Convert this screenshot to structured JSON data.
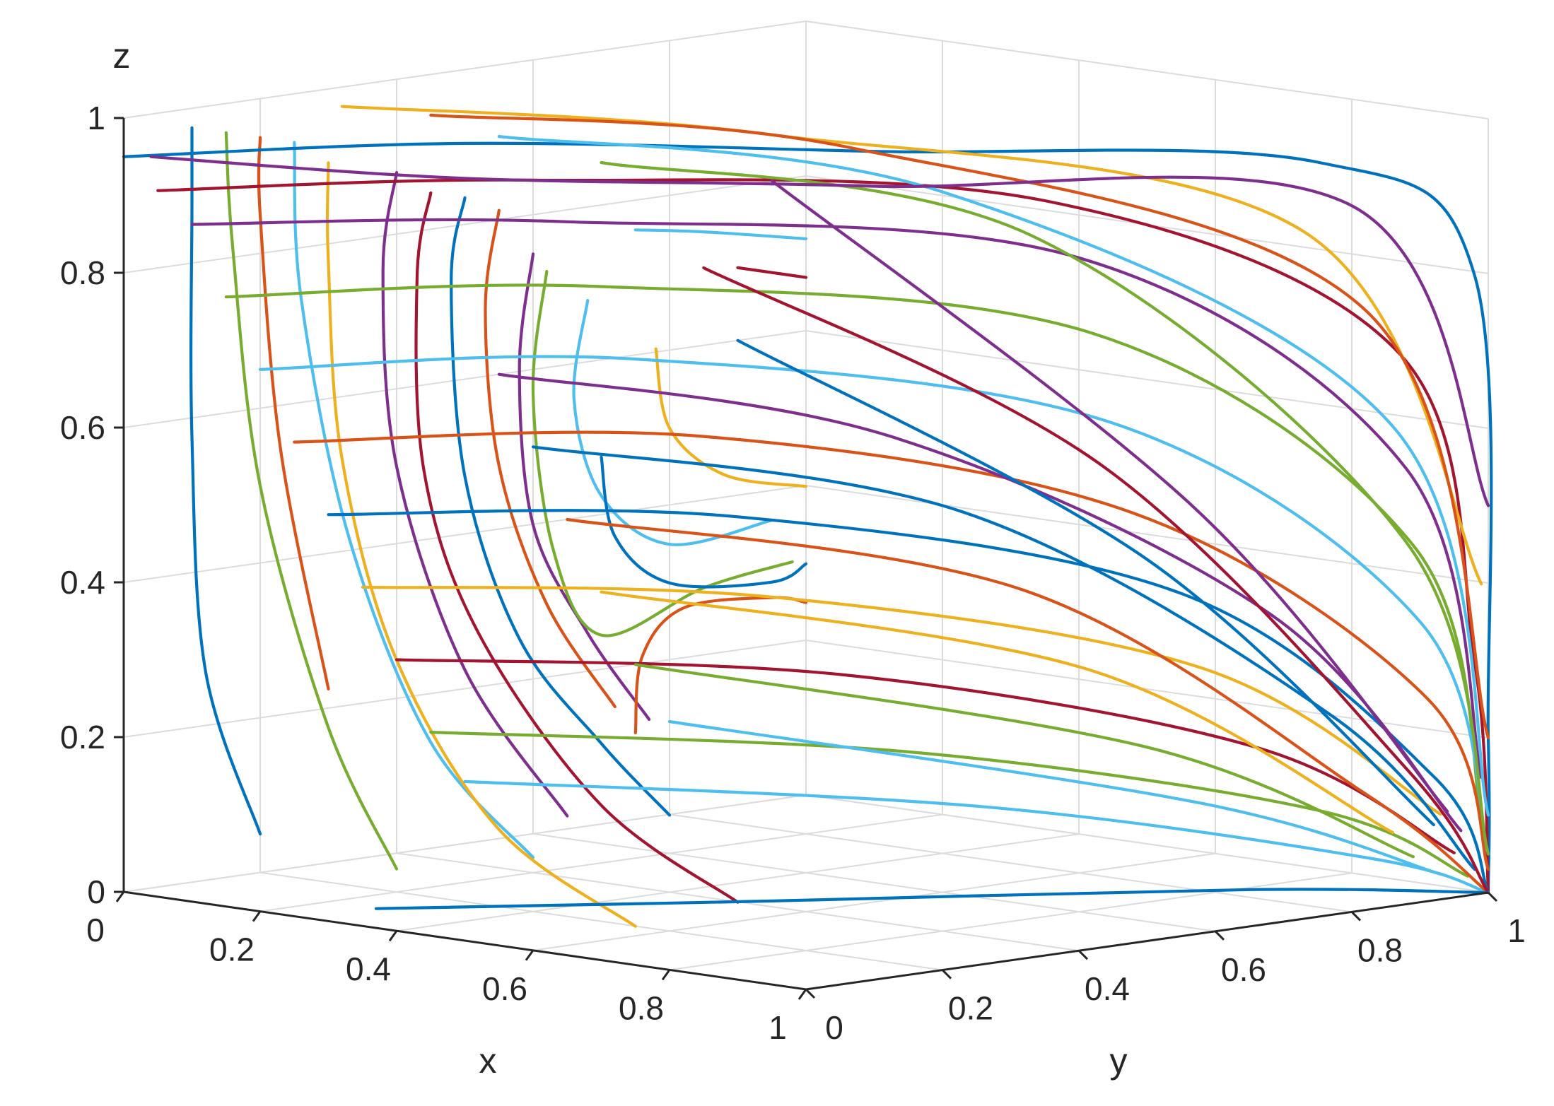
{
  "chart_data": {
    "type": "line",
    "chart_kind": "3d-trajectory-plot",
    "grid": true,
    "xlabel": "x",
    "ylabel": "y",
    "zlabel": "z",
    "xlim": [
      0,
      1
    ],
    "ylim": [
      0,
      1
    ],
    "zlim": [
      0,
      1
    ],
    "xticks": [
      {
        "v": 0,
        "label": "0"
      },
      {
        "v": 0.2,
        "label": "0.2"
      },
      {
        "v": 0.4,
        "label": "0.4"
      },
      {
        "v": 0.6,
        "label": "0.6"
      },
      {
        "v": 0.8,
        "label": "0.8"
      },
      {
        "v": 1,
        "label": "1"
      }
    ],
    "yticks": [
      {
        "v": 0,
        "label": "0"
      },
      {
        "v": 0.2,
        "label": "0.2"
      },
      {
        "v": 0.4,
        "label": "0.4"
      },
      {
        "v": 0.6,
        "label": "0.6"
      },
      {
        "v": 0.8,
        "label": "0.8"
      },
      {
        "v": 1,
        "label": "1"
      }
    ],
    "zticks": [
      {
        "v": 0,
        "label": "0"
      },
      {
        "v": 0.2,
        "label": "0.2"
      },
      {
        "v": 0.4,
        "label": "0.4"
      },
      {
        "v": 0.6,
        "label": "0.6"
      },
      {
        "v": 0.8,
        "label": "0.8"
      },
      {
        "v": 1,
        "label": "1"
      }
    ],
    "colors": [
      "#0072BD",
      "#D95319",
      "#EDB120",
      "#7E2F8E",
      "#77AC30",
      "#4DBEEE",
      "#A2142F"
    ],
    "series": [
      {
        "color": "#0072BD",
        "points": [
          [
            0.1,
            0,
            1
          ],
          [
            0.1,
            0,
            0.9
          ],
          [
            0.1,
            0,
            0.6
          ],
          [
            0.12,
            0,
            0.3
          ],
          [
            0.2,
            0,
            0.1
          ]
        ]
      },
      {
        "color": "#77AC30",
        "points": [
          [
            0.15,
            0,
            1
          ],
          [
            0.16,
            0,
            0.85
          ],
          [
            0.2,
            0,
            0.55
          ],
          [
            0.3,
            0,
            0.25
          ],
          [
            0.4,
            0,
            0.08
          ]
        ]
      },
      {
        "color": "#D95319",
        "points": [
          [
            0.2,
            0,
            1
          ],
          [
            0.2,
            0,
            0.9
          ],
          [
            0.23,
            0,
            0.6
          ],
          [
            0.3,
            0,
            0.3
          ]
        ]
      },
      {
        "color": "#4DBEEE",
        "points": [
          [
            0.25,
            0,
            1
          ],
          [
            0.26,
            0,
            0.8
          ],
          [
            0.33,
            0,
            0.5
          ],
          [
            0.45,
            0,
            0.25
          ],
          [
            0.6,
            0,
            0.12
          ]
        ]
      },
      {
        "color": "#EDB120",
        "points": [
          [
            0.3,
            0,
            0.98
          ],
          [
            0.3,
            0,
            0.85
          ],
          [
            0.32,
            0,
            0.6
          ],
          [
            0.4,
            0,
            0.35
          ],
          [
            0.55,
            0,
            0.15
          ],
          [
            0.75,
            0,
            0.05
          ]
        ]
      },
      {
        "color": "#7E2F8E",
        "points": [
          [
            0.4,
            0,
            0.98
          ],
          [
            0.38,
            0,
            0.85
          ],
          [
            0.4,
            0,
            0.6
          ],
          [
            0.5,
            0,
            0.35
          ],
          [
            0.65,
            0,
            0.18
          ]
        ]
      },
      {
        "color": "#A2142F",
        "points": [
          [
            0.45,
            0,
            0.96
          ],
          [
            0.43,
            0,
            0.85
          ],
          [
            0.44,
            0,
            0.6
          ],
          [
            0.52,
            0,
            0.4
          ],
          [
            0.7,
            0,
            0.2
          ],
          [
            0.9,
            0,
            0.1
          ]
        ]
      },
      {
        "color": "#0072BD",
        "points": [
          [
            0.5,
            0,
            0.96
          ],
          [
            0.48,
            0,
            0.85
          ],
          [
            0.5,
            0,
            0.6
          ],
          [
            0.58,
            0,
            0.4
          ],
          [
            0.7,
            0,
            0.28
          ],
          [
            0.8,
            0,
            0.2
          ]
        ]
      },
      {
        "color": "#D95319",
        "points": [
          [
            0.55,
            0,
            0.95
          ],
          [
            0.53,
            0,
            0.82
          ],
          [
            0.55,
            0,
            0.62
          ],
          [
            0.62,
            0,
            0.45
          ],
          [
            0.72,
            0,
            0.33
          ]
        ]
      },
      {
        "color": "#7E2F8E",
        "points": [
          [
            0.6,
            0,
            0.9
          ],
          [
            0.58,
            0,
            0.75
          ],
          [
            0.6,
            0,
            0.55
          ],
          [
            0.68,
            0,
            0.42
          ],
          [
            0.77,
            0,
            0.32
          ]
        ]
      },
      {
        "color": "#77AC30",
        "points": [
          [
            0.62,
            0,
            0.88
          ],
          [
            0.6,
            0,
            0.72
          ],
          [
            0.63,
            0,
            0.52
          ],
          [
            0.7,
            0,
            0.42
          ],
          [
            0.85,
            0,
            0.5
          ],
          [
            0.98,
            0,
            0.55
          ]
        ]
      },
      {
        "color": "#4DBEEE",
        "points": [
          [
            0.68,
            0,
            0.85
          ],
          [
            0.66,
            0,
            0.72
          ],
          [
            0.7,
            0,
            0.6
          ],
          [
            0.8,
            0,
            0.55
          ],
          [
            0.95,
            0,
            0.6
          ]
        ]
      },
      {
        "color": "#0072BD",
        "points": [
          [
            0.7,
            0,
            0.65
          ],
          [
            0.72,
            0,
            0.55
          ],
          [
            0.8,
            0,
            0.5
          ],
          [
            0.95,
            0,
            0.52
          ],
          [
            1,
            0,
            0.55
          ]
        ]
      },
      {
        "color": "#EDB120",
        "points": [
          [
            0.78,
            0,
            0.8
          ],
          [
            0.8,
            0,
            0.7
          ],
          [
            0.88,
            0,
            0.65
          ],
          [
            1,
            0,
            0.65
          ]
        ]
      },
      {
        "color": "#D95319",
        "points": [
          [
            0.75,
            0,
            0.3
          ],
          [
            0.76,
            0,
            0.4
          ],
          [
            0.82,
            0,
            0.47
          ],
          [
            0.95,
            0,
            0.5
          ],
          [
            1,
            0,
            0.5
          ]
        ]
      },
      {
        "color": "#A2142F",
        "points": [
          [
            0.9,
            0,
            0.92
          ],
          [
            0.95,
            0,
            0.92
          ],
          [
            1,
            0,
            0.92
          ]
        ]
      },
      {
        "color": "#4DBEEE",
        "points": [
          [
            0.75,
            0,
            0.95
          ],
          [
            0.85,
            0,
            0.96
          ],
          [
            1,
            0,
            0.97
          ]
        ]
      },
      {
        "color": "#0072BD",
        "points": [
          [
            0,
            0,
            0.95
          ],
          [
            0.3,
            0.2,
            0.98
          ],
          [
            0.6,
            0.5,
            0.97
          ],
          [
            0.9,
            0.85,
            0.95
          ],
          [
            1,
            0.98,
            0.8
          ],
          [
            1,
            1,
            0.2
          ],
          [
            1,
            1,
            0
          ]
        ]
      },
      {
        "color": "#A2142F",
        "points": [
          [
            0,
            0.05,
            0.9
          ],
          [
            0.3,
            0.3,
            0.92
          ],
          [
            0.7,
            0.65,
            0.9
          ],
          [
            0.95,
            0.92,
            0.7
          ],
          [
            1,
            0.98,
            0.3
          ],
          [
            1,
            1,
            0
          ]
        ]
      },
      {
        "color": "#7E2F8E",
        "points": [
          [
            0,
            0.1,
            0.85
          ],
          [
            0.3,
            0.35,
            0.86
          ],
          [
            0.7,
            0.7,
            0.82
          ],
          [
            0.95,
            0.93,
            0.55
          ],
          [
            1,
            0.99,
            0.15
          ]
        ]
      },
      {
        "color": "#77AC30",
        "points": [
          [
            0,
            0.15,
            0.75
          ],
          [
            0.3,
            0.4,
            0.77
          ],
          [
            0.7,
            0.72,
            0.72
          ],
          [
            0.95,
            0.94,
            0.45
          ],
          [
            1,
            0.99,
            0.1
          ]
        ]
      },
      {
        "color": "#4DBEEE",
        "points": [
          [
            0,
            0.2,
            0.65
          ],
          [
            0.3,
            0.45,
            0.67
          ],
          [
            0.7,
            0.75,
            0.6
          ],
          [
            0.95,
            0.95,
            0.35
          ],
          [
            1,
            1,
            0.05
          ]
        ]
      },
      {
        "color": "#D95319",
        "points": [
          [
            0,
            0.25,
            0.55
          ],
          [
            0.35,
            0.5,
            0.57
          ],
          [
            0.7,
            0.78,
            0.48
          ],
          [
            0.95,
            0.96,
            0.25
          ],
          [
            1,
            1,
            0.03
          ]
        ]
      },
      {
        "color": "#0072BD",
        "points": [
          [
            0,
            0.3,
            0.45
          ],
          [
            0.35,
            0.55,
            0.46
          ],
          [
            0.75,
            0.8,
            0.38
          ],
          [
            0.96,
            0.96,
            0.15
          ],
          [
            1,
            1,
            0
          ]
        ]
      },
      {
        "color": "#EDB120",
        "points": [
          [
            0,
            0.35,
            0.35
          ],
          [
            0.35,
            0.6,
            0.35
          ],
          [
            0.75,
            0.83,
            0.28
          ],
          [
            0.96,
            0.97,
            0.1
          ]
        ]
      },
      {
        "color": "#A2142F",
        "points": [
          [
            0,
            0.4,
            0.25
          ],
          [
            0.4,
            0.65,
            0.25
          ],
          [
            0.8,
            0.86,
            0.18
          ],
          [
            0.97,
            0.98,
            0.05
          ]
        ]
      },
      {
        "color": "#77AC30",
        "points": [
          [
            0,
            0.45,
            0.15
          ],
          [
            0.45,
            0.7,
            0.15
          ],
          [
            0.85,
            0.9,
            0.1
          ],
          [
            0.98,
            0.99,
            0.02
          ]
        ]
      },
      {
        "color": "#4DBEEE",
        "points": [
          [
            0,
            0.5,
            0.08
          ],
          [
            0.5,
            0.75,
            0.08
          ],
          [
            0.9,
            0.93,
            0.04
          ],
          [
            1,
            1,
            0
          ]
        ]
      },
      {
        "color": "#7E2F8E",
        "points": [
          [
            0,
            0.55,
            0.6
          ],
          [
            0.4,
            0.72,
            0.55
          ],
          [
            0.8,
            0.88,
            0.35
          ],
          [
            0.98,
            0.98,
            0.08
          ]
        ]
      },
      {
        "color": "#0072BD",
        "points": [
          [
            0,
            0.6,
            0.5
          ],
          [
            0.45,
            0.78,
            0.45
          ],
          [
            0.85,
            0.92,
            0.22
          ],
          [
            0.99,
            0.99,
            0.03
          ]
        ]
      },
      {
        "color": "#D95319",
        "points": [
          [
            0,
            0.65,
            0.4
          ],
          [
            0.5,
            0.82,
            0.35
          ],
          [
            0.88,
            0.94,
            0.12
          ],
          [
            1,
            1,
            0
          ]
        ]
      },
      {
        "color": "#EDB120",
        "points": [
          [
            0,
            0.7,
            0.3
          ],
          [
            0.55,
            0.86,
            0.25
          ],
          [
            0.9,
            0.96,
            0.07
          ]
        ]
      },
      {
        "color": "#77AC30",
        "points": [
          [
            0,
            0.75,
            0.2
          ],
          [
            0.6,
            0.9,
            0.15
          ],
          [
            0.92,
            0.97,
            0.04
          ]
        ]
      },
      {
        "color": "#4DBEEE",
        "points": [
          [
            0,
            0.8,
            0.12
          ],
          [
            0.65,
            0.93,
            0.08
          ],
          [
            0.95,
            0.98,
            0.02
          ]
        ]
      },
      {
        "color": "#A2142F",
        "points": [
          [
            0,
            0.85,
            0.7
          ],
          [
            0.5,
            0.93,
            0.5
          ],
          [
            0.9,
            0.98,
            0.15
          ],
          [
            1,
            1,
            0
          ]
        ]
      },
      {
        "color": "#0072BD",
        "points": [
          [
            0,
            0.9,
            0.6
          ],
          [
            0.55,
            0.95,
            0.38
          ],
          [
            0.93,
            0.99,
            0.08
          ]
        ]
      },
      {
        "color": "#7E2F8E",
        "points": [
          [
            0,
            0.95,
            0.8
          ],
          [
            0.6,
            0.97,
            0.45
          ],
          [
            0.95,
            0.99,
            0.1
          ]
        ]
      },
      {
        "color": "#EDB120",
        "points": [
          [
            0.02,
            0.3,
            0.98
          ],
          [
            0.4,
            0.55,
            0.96
          ],
          [
            0.85,
            0.88,
            0.85
          ],
          [
            1,
            0.99,
            0.4
          ]
        ]
      },
      {
        "color": "#D95319",
        "points": [
          [
            0.05,
            0.4,
            0.96
          ],
          [
            0.45,
            0.62,
            0.94
          ],
          [
            0.9,
            0.92,
            0.75
          ],
          [
            1,
            1,
            0.2
          ]
        ]
      },
      {
        "color": "#4DBEEE",
        "points": [
          [
            0.05,
            0.5,
            0.92
          ],
          [
            0.5,
            0.7,
            0.88
          ],
          [
            0.92,
            0.94,
            0.6
          ],
          [
            1,
            1,
            0.1
          ]
        ]
      },
      {
        "color": "#77AC30",
        "points": [
          [
            0.1,
            0.6,
            0.88
          ],
          [
            0.55,
            0.78,
            0.82
          ],
          [
            0.93,
            0.95,
            0.45
          ],
          [
            1,
            1,
            0.05
          ]
        ]
      },
      {
        "color": "#0072BD",
        "points": [
          [
            0.35,
            0.02,
            0.02
          ],
          [
            0.6,
            0.35,
            0.02
          ],
          [
            0.85,
            0.8,
            0.01
          ],
          [
            1,
            1,
            0
          ]
        ]
      },
      {
        "color": "#7E2F8E",
        "points": [
          [
            0.02,
            0.02,
            0.95
          ],
          [
            0.4,
            0.1,
            0.96
          ],
          [
            0.7,
            0.4,
            0.95
          ],
          [
            0.95,
            0.85,
            0.9
          ],
          [
            1,
            1,
            0.5
          ]
        ]
      }
    ]
  }
}
